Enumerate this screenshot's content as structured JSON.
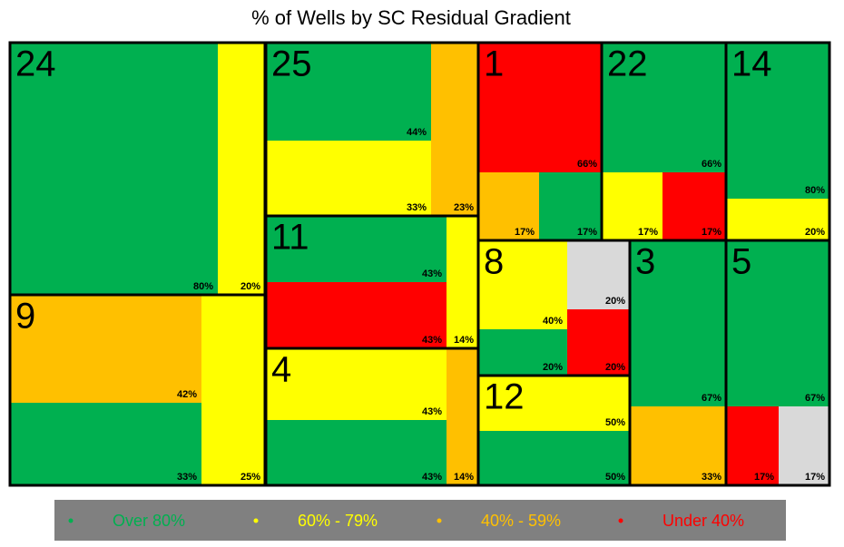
{
  "chart_data": {
    "type": "treemap",
    "title": "% of Wells by SC Residual Gradient",
    "groups": [
      {
        "label": "24",
        "values": [
          80,
          20
        ],
        "value_labels": [
          "80%",
          "20%"
        ],
        "colors": [
          "#00b050",
          "#ffff00"
        ]
      },
      {
        "label": "9",
        "values": [
          42,
          33,
          25
        ],
        "value_labels": [
          "42%",
          "33%",
          "25%"
        ],
        "colors": [
          "#ffc000",
          "#00b050",
          "#ffff00"
        ]
      },
      {
        "label": "25",
        "values": [
          44,
          33,
          23
        ],
        "value_labels": [
          "44%",
          "33%",
          "23%"
        ],
        "colors": [
          "#00b050",
          "#ffff00",
          "#ffc000"
        ]
      },
      {
        "label": "11",
        "values": [
          43,
          43,
          14
        ],
        "value_labels": [
          "43%",
          "43%",
          "14%"
        ],
        "colors": [
          "#00b050",
          "#ff0000",
          "#ffff00"
        ]
      },
      {
        "label": "4",
        "values": [
          43,
          43,
          14
        ],
        "value_labels": [
          "43%",
          "43%",
          "14%"
        ],
        "colors": [
          "#ffff00",
          "#00b050",
          "#ffc000"
        ]
      },
      {
        "label": "1",
        "values": [
          66,
          17,
          17
        ],
        "value_labels": [
          "66%",
          "17%",
          "17%"
        ],
        "colors": [
          "#ff0000",
          "#ffc000",
          "#00b050"
        ]
      },
      {
        "label": "22",
        "values": [
          66,
          17,
          17
        ],
        "value_labels": [
          "66%",
          "17%",
          "17%"
        ],
        "colors": [
          "#00b050",
          "#ffff00",
          "#ff0000"
        ]
      },
      {
        "label": "14",
        "values": [
          80,
          20
        ],
        "value_labels": [
          "80%",
          "20%"
        ],
        "colors": [
          "#00b050",
          "#ffff00"
        ]
      },
      {
        "label": "8",
        "values": [
          40,
          20,
          20,
          20
        ],
        "value_labels": [
          "40%",
          "20%",
          "20%",
          "20%"
        ],
        "colors": [
          "#ffff00",
          "#d9d9d9",
          "#ff0000",
          "#00b050"
        ]
      },
      {
        "label": "12",
        "values": [
          50,
          50
        ],
        "value_labels": [
          "50%",
          "50%"
        ],
        "colors": [
          "#ffff00",
          "#00b050"
        ]
      },
      {
        "label": "3",
        "values": [
          67,
          33
        ],
        "value_labels": [
          "67%",
          "33%"
        ],
        "colors": [
          "#00b050",
          "#ffc000"
        ]
      },
      {
        "label": "5",
        "values": [
          67,
          17,
          17
        ],
        "value_labels": [
          "67%",
          "17%",
          "17%"
        ],
        "colors": [
          "#00b050",
          "#ff0000",
          "#d9d9d9"
        ]
      }
    ],
    "legend": [
      {
        "name": "Over 80%",
        "color": "#00b050"
      },
      {
        "name": "60% - 79%",
        "color": "#ffff00"
      },
      {
        "name": "40% - 59%",
        "color": "#ffc000"
      },
      {
        "name": "Under 40%",
        "color": "#ff0000"
      }
    ]
  }
}
